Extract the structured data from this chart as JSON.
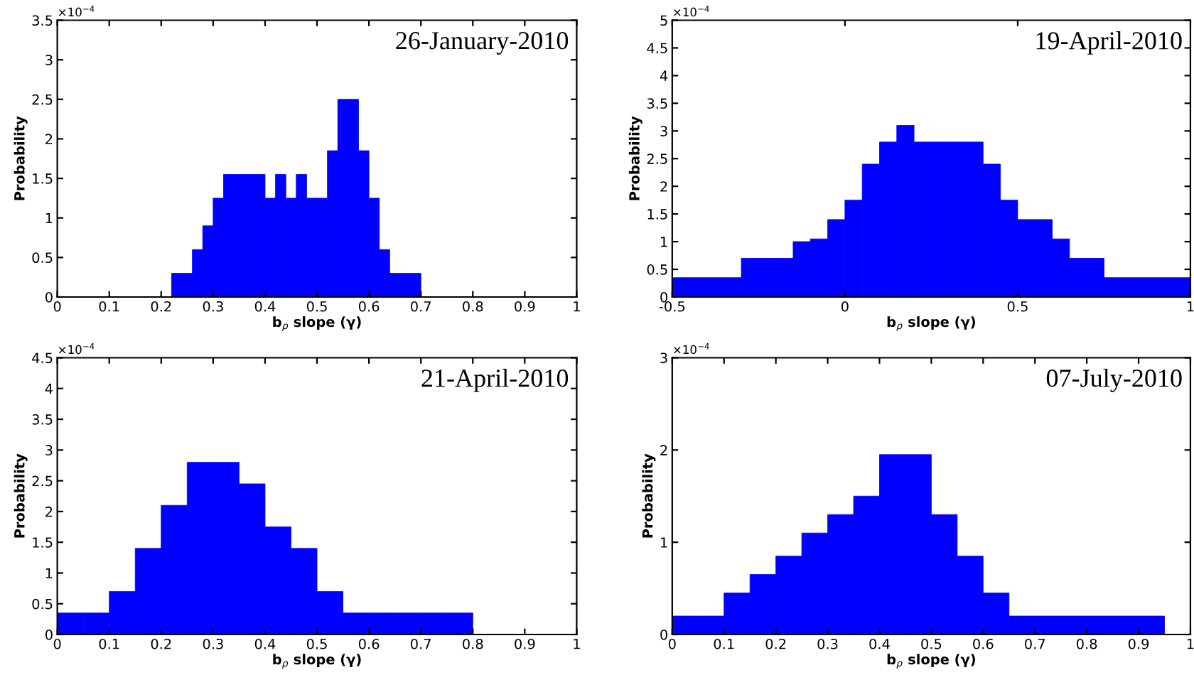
{
  "chart_data": [
    {
      "type": "histogram",
      "title": "26-January-2010",
      "xlabel": "b$_{ρ}$ slope (γ)",
      "ylabel": "Probability",
      "annotations": [
        "×10$^{−4}$"
      ],
      "color": "#0000ff",
      "bins": [
        0.22,
        0.24,
        0.26,
        0.28,
        0.3,
        0.32,
        0.34,
        0.36,
        0.38,
        0.4,
        0.42,
        0.44,
        0.46,
        0.48,
        0.5,
        0.52,
        0.54,
        0.56,
        0.58,
        0.6,
        0.62,
        0.64,
        0.66,
        0.68,
        0.7
      ],
      "values": [
        0.3,
        0.3,
        0.6,
        0.9,
        1.25,
        1.55,
        1.55,
        1.55,
        1.55,
        1.25,
        1.55,
        1.25,
        1.55,
        1.25,
        1.25,
        1.85,
        2.5,
        2.5,
        1.85,
        1.25,
        0.6,
        0.3,
        0.3,
        0.3
      ],
      "xlim": [
        0,
        1
      ],
      "xticks": [
        0,
        0.1,
        0.2,
        0.3,
        0.4,
        0.5,
        0.6,
        0.7,
        0.8,
        0.9,
        1
      ],
      "ylim": [
        0,
        3.5
      ],
      "yticks": [
        0,
        0.5,
        1,
        1.5,
        2,
        2.5,
        3,
        3.5
      ],
      "grid": false
    },
    {
      "type": "histogram",
      "title": "19-April-2010",
      "xlabel": "b$_{ρ}$ slope (γ)",
      "ylabel": "Probability",
      "annotations": [
        "×10$^{−4}$"
      ],
      "color": "#0000ff",
      "bins": [
        -0.5,
        -0.45,
        -0.4,
        -0.35,
        -0.3,
        -0.25,
        -0.2,
        -0.15,
        -0.1,
        -0.05,
        0,
        0.05,
        0.1,
        0.15,
        0.2,
        0.25,
        0.3,
        0.35,
        0.4,
        0.45,
        0.5,
        0.55,
        0.6,
        0.65,
        0.7,
        0.75,
        0.8,
        0.85,
        0.9,
        0.95,
        1
      ],
      "values": [
        0.35,
        0.35,
        0.35,
        0.35,
        0.7,
        0.7,
        0.7,
        1.0,
        1.05,
        1.4,
        1.75,
        2.4,
        2.8,
        3.1,
        2.8,
        2.8,
        2.8,
        2.8,
        2.4,
        1.75,
        1.4,
        1.4,
        1.05,
        0.7,
        0.7,
        0.35,
        0.35,
        0.35,
        0.35,
        0.35
      ],
      "xlim": [
        -0.5,
        1
      ],
      "xticks": [
        -0.5,
        0,
        0.5,
        1
      ],
      "ylim": [
        0,
        5
      ],
      "yticks": [
        0,
        0.5,
        1,
        1.5,
        2,
        2.5,
        3,
        3.5,
        4,
        4.5,
        5
      ],
      "grid": false
    },
    {
      "type": "histogram",
      "title": "21-April-2010",
      "xlabel": "b$_{ρ}$ slope (γ)",
      "ylabel": "Probability",
      "annotations": [
        "×10$^{−4}$"
      ],
      "color": "#0000ff",
      "bins": [
        0,
        0.05,
        0.1,
        0.15,
        0.2,
        0.25,
        0.3,
        0.35,
        0.4,
        0.45,
        0.5,
        0.55,
        0.6,
        0.65,
        0.7,
        0.75,
        0.8
      ],
      "values": [
        0.35,
        0.35,
        0.7,
        1.4,
        2.1,
        2.8,
        2.8,
        2.45,
        1.75,
        1.4,
        0.7,
        0.35,
        0.35,
        0.35,
        0.35,
        0.35
      ],
      "xlim": [
        0,
        1
      ],
      "xticks": [
        0,
        0.1,
        0.2,
        0.3,
        0.4,
        0.5,
        0.6,
        0.7,
        0.8,
        0.9,
        1
      ],
      "ylim": [
        0,
        4.5
      ],
      "yticks": [
        0,
        0.5,
        1,
        1.5,
        2,
        2.5,
        3,
        3.5,
        4,
        4.5
      ],
      "grid": false
    },
    {
      "type": "histogram",
      "title": "07-July-2010",
      "xlabel": "b$_{ρ}$ slope (γ)",
      "ylabel": "Probability",
      "annotations": [
        "×10$^{−4}$"
      ],
      "color": "#0000ff",
      "bins": [
        0,
        0.05,
        0.1,
        0.15,
        0.2,
        0.25,
        0.3,
        0.35,
        0.4,
        0.45,
        0.5,
        0.55,
        0.6,
        0.65,
        0.7,
        0.75,
        0.8,
        0.85,
        0.9,
        0.95
      ],
      "values": [
        0.2,
        0.2,
        0.45,
        0.65,
        0.85,
        1.1,
        1.3,
        1.5,
        1.95,
        1.95,
        1.3,
        0.85,
        0.45,
        0.2,
        0.2,
        0.2,
        0.2,
        0.2,
        0.2
      ],
      "xlim": [
        0,
        1
      ],
      "xticks": [
        0,
        0.1,
        0.2,
        0.3,
        0.4,
        0.5,
        0.6,
        0.7,
        0.8,
        0.9,
        1
      ],
      "ylim": [
        0,
        3
      ],
      "yticks": [
        0,
        1,
        2,
        3
      ],
      "grid": false
    }
  ]
}
